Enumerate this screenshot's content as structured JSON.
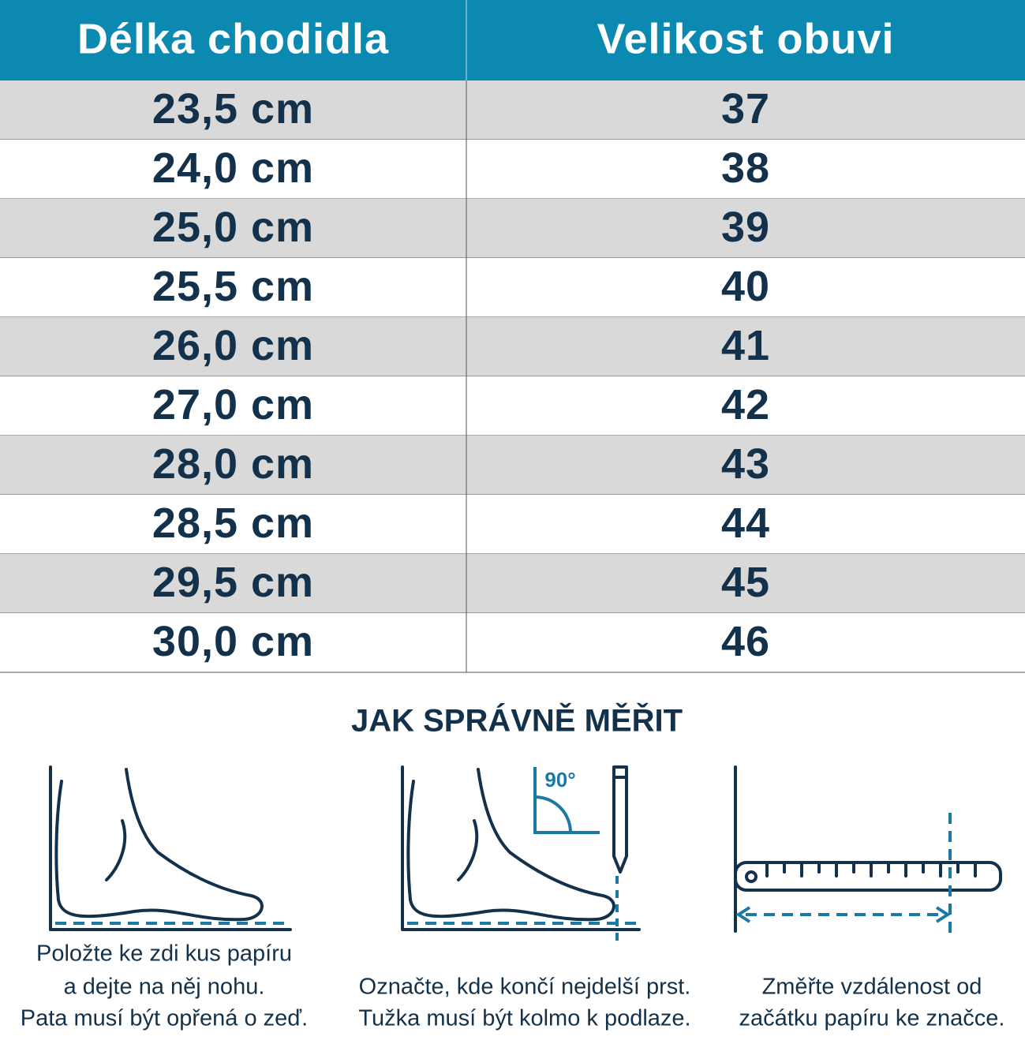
{
  "table": {
    "header": [
      "Délka chodidla",
      "Velikost obuvi"
    ],
    "rows": [
      [
        "23,5 cm",
        "37"
      ],
      [
        "24,0 cm",
        "38"
      ],
      [
        "25,0 cm",
        "39"
      ],
      [
        "25,5 cm",
        "40"
      ],
      [
        "26,0 cm",
        "41"
      ],
      [
        "27,0 cm",
        "42"
      ],
      [
        "28,0 cm",
        "43"
      ],
      [
        "28,5 cm",
        "44"
      ],
      [
        "29,5 cm",
        "45"
      ],
      [
        "30,0 cm",
        "46"
      ]
    ]
  },
  "instructions": {
    "title": "JAK SPRÁVNĚ MĚŘIT",
    "angle_label": "90°",
    "steps": [
      {
        "lines": [
          "Položte ke zdi kus papíru",
          "a dejte na něj nohu.",
          "Pata musí být opřená o zeď."
        ]
      },
      {
        "lines": [
          "Označte, kde končí nejdelší prst.",
          "Tužka musí být kolmo k podlaze."
        ]
      },
      {
        "lines": [
          "Změřte vzdálenost od",
          "začátku papíru ke značce."
        ]
      }
    ]
  }
}
